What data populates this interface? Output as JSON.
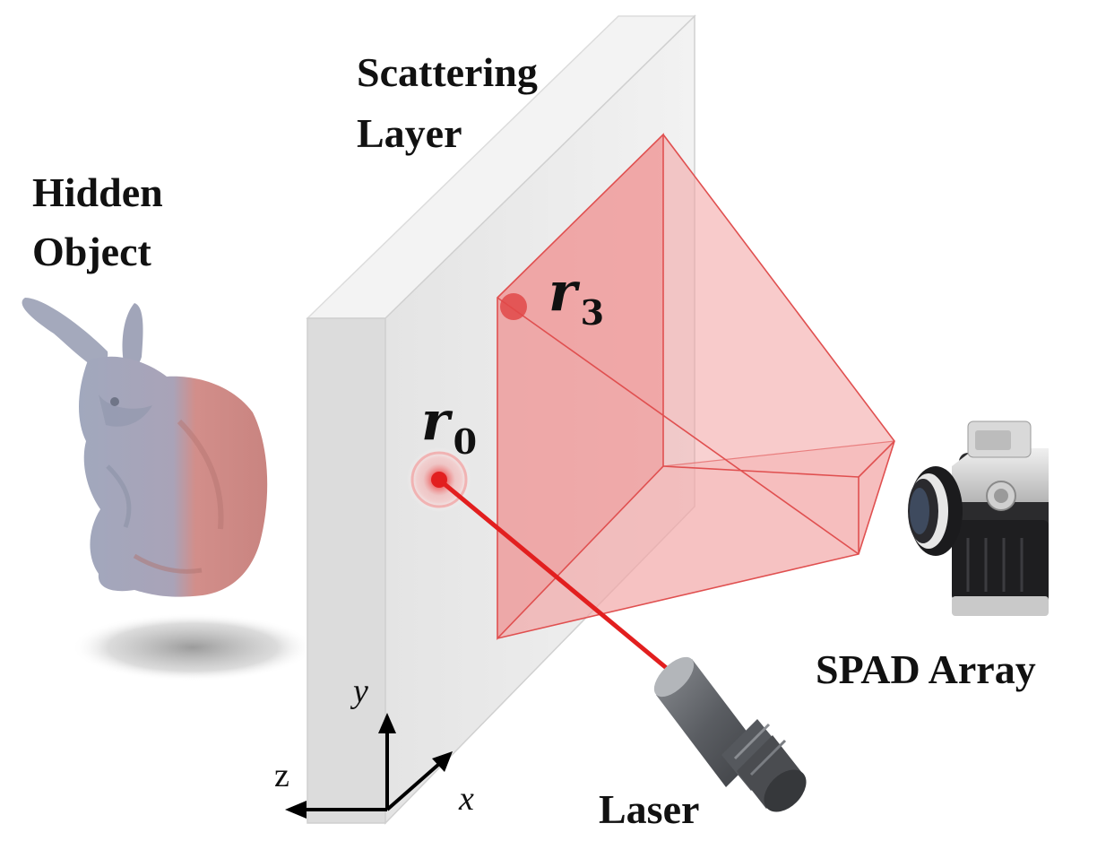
{
  "labels": {
    "scattering_line1": "Scattering",
    "scattering_line2": "Layer",
    "hidden_line1": "Hidden",
    "hidden_line2": "Object",
    "spad_array": "SPAD Array",
    "laser": "Laser",
    "r0_base": "r",
    "r0_sub": "0",
    "r3_base": "r",
    "r3_sub": "3",
    "axis_y": "y",
    "axis_x": "x",
    "axis_z": "z"
  },
  "colors": {
    "wall_front": "#e9e9e9",
    "wall_side": "#c9c9c9",
    "wall_top": "#f4f4f4",
    "frustum_fill": "#f2a0a0",
    "frustum_edge": "#e05050",
    "laser_beam": "#e21f1f",
    "bunny_gray": "#9fa6bb",
    "bunny_pink": "#d98b86"
  }
}
